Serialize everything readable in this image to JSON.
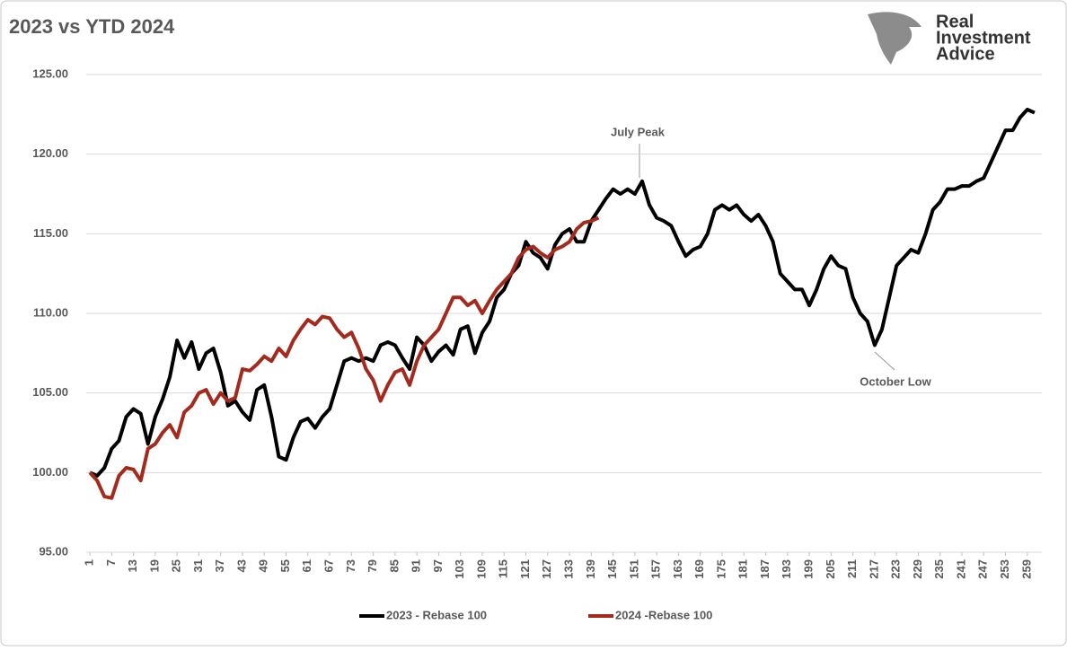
{
  "chart_data": {
    "type": "line",
    "title": "2023 vs YTD 2024",
    "logo": [
      "Real",
      "Investment",
      "Advice"
    ],
    "annotations": [
      "July Peak",
      "October Low"
    ],
    "xlim": [
      0,
      263
    ],
    "xticks": [
      1,
      7,
      13,
      19,
      25,
      31,
      37,
      43,
      49,
      55,
      61,
      67,
      73,
      79,
      85,
      91,
      97,
      103,
      109,
      115,
      121,
      127,
      133,
      139,
      145,
      151,
      157,
      163,
      169,
      175,
      181,
      187,
      193,
      199,
      205,
      211,
      217,
      223,
      229,
      235,
      241,
      247,
      253,
      259
    ],
    "ylim": [
      95,
      125
    ],
    "yticks": [
      {
        "value": 95,
        "label": "95.00"
      },
      {
        "value": 100,
        "label": "100.00"
      },
      {
        "value": 105,
        "label": "105.00"
      },
      {
        "value": 110,
        "label": "110.00"
      },
      {
        "value": 115,
        "label": "115.00"
      },
      {
        "value": 120,
        "label": "120.00"
      },
      {
        "value": 125,
        "label": "125.00"
      }
    ],
    "grid": true,
    "legend": "bottom",
    "series": [
      {
        "name": "2023 - Rebase 100",
        "color": "#000000",
        "x": [
          1,
          3,
          5,
          7,
          9,
          11,
          13,
          15,
          17,
          19,
          21,
          23,
          25,
          27,
          29,
          31,
          33,
          35,
          37,
          39,
          41,
          43,
          45,
          47,
          49,
          51,
          53,
          55,
          57,
          59,
          61,
          63,
          65,
          67,
          69,
          71,
          73,
          75,
          77,
          79,
          81,
          83,
          85,
          87,
          89,
          91,
          93,
          95,
          97,
          99,
          101,
          103,
          105,
          107,
          109,
          111,
          113,
          115,
          117,
          119,
          121,
          123,
          125,
          127,
          129,
          131,
          133,
          135,
          137,
          139,
          141,
          143,
          145,
          147,
          149,
          151,
          153,
          155,
          157,
          159,
          161,
          163,
          165,
          167,
          169,
          171,
          173,
          175,
          177,
          179,
          181,
          183,
          185,
          187,
          189,
          191,
          193,
          195,
          197,
          199,
          201,
          203,
          205,
          207,
          209,
          211,
          213,
          215,
          217,
          219,
          221,
          223,
          225,
          227,
          229,
          231,
          233,
          235,
          237,
          239,
          241,
          243,
          245,
          247,
          249,
          251,
          253,
          255,
          257,
          259,
          261
        ],
        "values": [
          100,
          99.8,
          100.3,
          101.5,
          102,
          103.5,
          104,
          103.7,
          101.8,
          103.5,
          104.6,
          106,
          108.3,
          107.2,
          108.2,
          106.5,
          107.5,
          107.8,
          106.3,
          104.2,
          104.5,
          103.8,
          103.3,
          105.2,
          105.5,
          103.5,
          101,
          100.8,
          102.2,
          103.2,
          103.4,
          102.8,
          103.5,
          104,
          105.5,
          107,
          107.2,
          107,
          107.2,
          107,
          108,
          108.2,
          108,
          107.2,
          106.5,
          108.5,
          108,
          107,
          107.6,
          108,
          107.4,
          109,
          109.2,
          107.5,
          108.8,
          109.5,
          111,
          111.5,
          112.5,
          113,
          114.5,
          113.8,
          113.5,
          112.8,
          114.3,
          115,
          115.3,
          114.5,
          114.5,
          115.8,
          116.5,
          117.2,
          117.8,
          117.5,
          117.8,
          117.5,
          118.3,
          116.8,
          116,
          115.8,
          115.5,
          114.5,
          113.6,
          114,
          114.2,
          115,
          116.5,
          116.8,
          116.5,
          116.8,
          116.2,
          115.8,
          116.2,
          115.5,
          114.5,
          112.5,
          112,
          111.5,
          111.5,
          110.5,
          111.5,
          112.8,
          113.6,
          113,
          112.8,
          111,
          110,
          109.5,
          108,
          109,
          111,
          113,
          113.5,
          114,
          113.8,
          115,
          116.5,
          117,
          117.8,
          117.8,
          118,
          118,
          118.3,
          118.5,
          119.5,
          120.5,
          121.5,
          121.5,
          122.3,
          122.8,
          122.6
        ]
      },
      {
        "name": "2024 -Rebase 100",
        "color": "#a52a1e",
        "x": [
          1,
          3,
          5,
          7,
          9,
          11,
          13,
          15,
          17,
          19,
          21,
          23,
          25,
          27,
          29,
          31,
          33,
          35,
          37,
          39,
          41,
          43,
          45,
          47,
          49,
          51,
          53,
          55,
          57,
          59,
          61,
          63,
          65,
          67,
          69,
          71,
          73,
          75,
          77,
          79,
          81,
          83,
          85,
          87,
          89,
          91,
          93,
          95,
          97,
          99,
          101,
          103,
          105,
          107,
          109,
          111,
          113,
          115,
          117,
          119,
          121,
          123,
          125,
          127,
          129,
          131,
          133,
          135,
          137,
          139,
          141
        ],
        "values": [
          100,
          99.5,
          98.5,
          98.4,
          99.8,
          100.3,
          100.2,
          99.5,
          101.5,
          101.8,
          102.5,
          103,
          102.2,
          103.8,
          104.2,
          105,
          105.2,
          104.3,
          105,
          104.5,
          104.7,
          106.5,
          106.4,
          106.8,
          107.3,
          107,
          107.8,
          107.3,
          108.3,
          109,
          109.6,
          109.3,
          109.8,
          109.7,
          109,
          108.5,
          108.8,
          107.8,
          106.5,
          105.8,
          104.5,
          105.5,
          106.3,
          106.5,
          105.5,
          107,
          108,
          108.5,
          109,
          110,
          111,
          111,
          110.5,
          110.8,
          110,
          110.8,
          111.5,
          112,
          112.5,
          113.5,
          114,
          114.2,
          113.8,
          113.5,
          114,
          114.2,
          114.5,
          115.3,
          115.7,
          115.8,
          116
        ]
      }
    ]
  }
}
